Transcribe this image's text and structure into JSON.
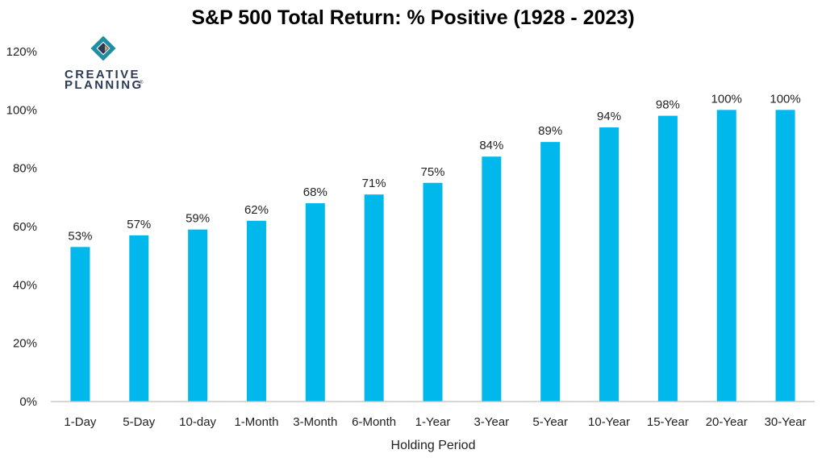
{
  "logo": {
    "line1": "CREATIVE",
    "line2": "PLANNING",
    "trademark": "®"
  },
  "colors": {
    "bar": "#00B8EC",
    "axis": "#BFBFBF",
    "logo_teal": "#1f8ea3",
    "logo_navy": "#2b3a55",
    "logo_gold": "#c9a66b"
  },
  "chart_data": {
    "type": "bar",
    "title": "S&P 500 Total Return: % Positive (1928 - 2023)",
    "xlabel": "Holding Period",
    "ylabel": "",
    "ylim": [
      0,
      120
    ],
    "yticks": [
      0,
      20,
      40,
      60,
      80,
      100,
      120
    ],
    "ytick_labels": [
      "0%",
      "20%",
      "40%",
      "60%",
      "80%",
      "100%",
      "120%"
    ],
    "grid": false,
    "categories": [
      "1-Day",
      "5-Day",
      "10-day",
      "1-Month",
      "3-Month",
      "6-Month",
      "1-Year",
      "3-Year",
      "5-Year",
      "10-Year",
      "15-Year",
      "20-Year",
      "30-Year"
    ],
    "values": [
      53,
      57,
      59,
      62,
      68,
      71,
      75,
      84,
      89,
      94,
      98,
      100,
      100
    ],
    "data_labels": [
      "53%",
      "57%",
      "59%",
      "62%",
      "68%",
      "71%",
      "75%",
      "84%",
      "89%",
      "94%",
      "98%",
      "100%",
      "100%"
    ]
  }
}
